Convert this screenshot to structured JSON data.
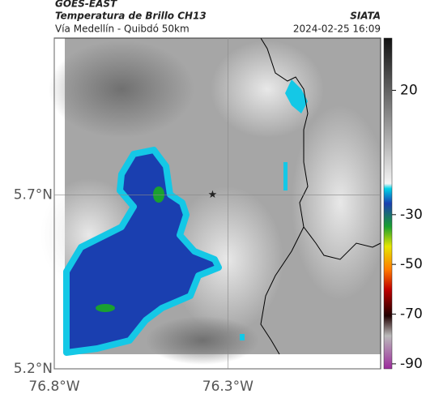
{
  "header": {
    "title": "GOES-EAST",
    "subtitle": "Temperatura de Brillo CH13",
    "route": "Vía Medellín - Quibdó 50km",
    "source": "SIATA",
    "timestamp": "2024-02-25 16:09"
  },
  "map": {
    "xlim": [
      -76.8,
      -75.86
    ],
    "ylim": [
      5.2,
      6.15
    ],
    "xticks": [
      {
        "value": -76.8,
        "label": "76.8°W"
      },
      {
        "value": -76.3,
        "label": "76.3°W"
      }
    ],
    "yticks": [
      {
        "value": 5.7,
        "label": "5.7°N"
      },
      {
        "value": 5.2,
        "label": "5.2°N"
      }
    ],
    "marker": {
      "lon": -76.344,
      "lat": 5.7
    }
  },
  "colorbar": {
    "lim": [
      -92,
      41
    ],
    "ticks": [
      20,
      -30,
      -50,
      -70,
      -90
    ]
  }
}
